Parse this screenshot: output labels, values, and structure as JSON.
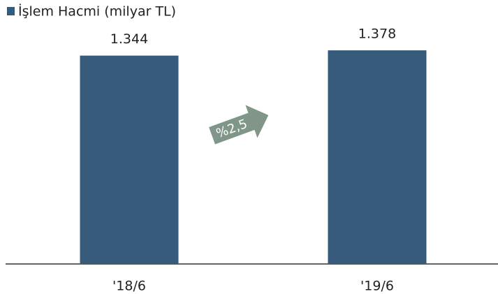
{
  "chart_data": {
    "type": "bar",
    "categories": [
      "'18/6",
      "'19/6"
    ],
    "series": [
      {
        "name": "İşlem Hacmi (milyar TL)",
        "color": "#365b7b",
        "values": [
          1.344,
          1.378
        ]
      }
    ],
    "annotation": "%2,5",
    "annotation_color": "#7f9689"
  }
}
